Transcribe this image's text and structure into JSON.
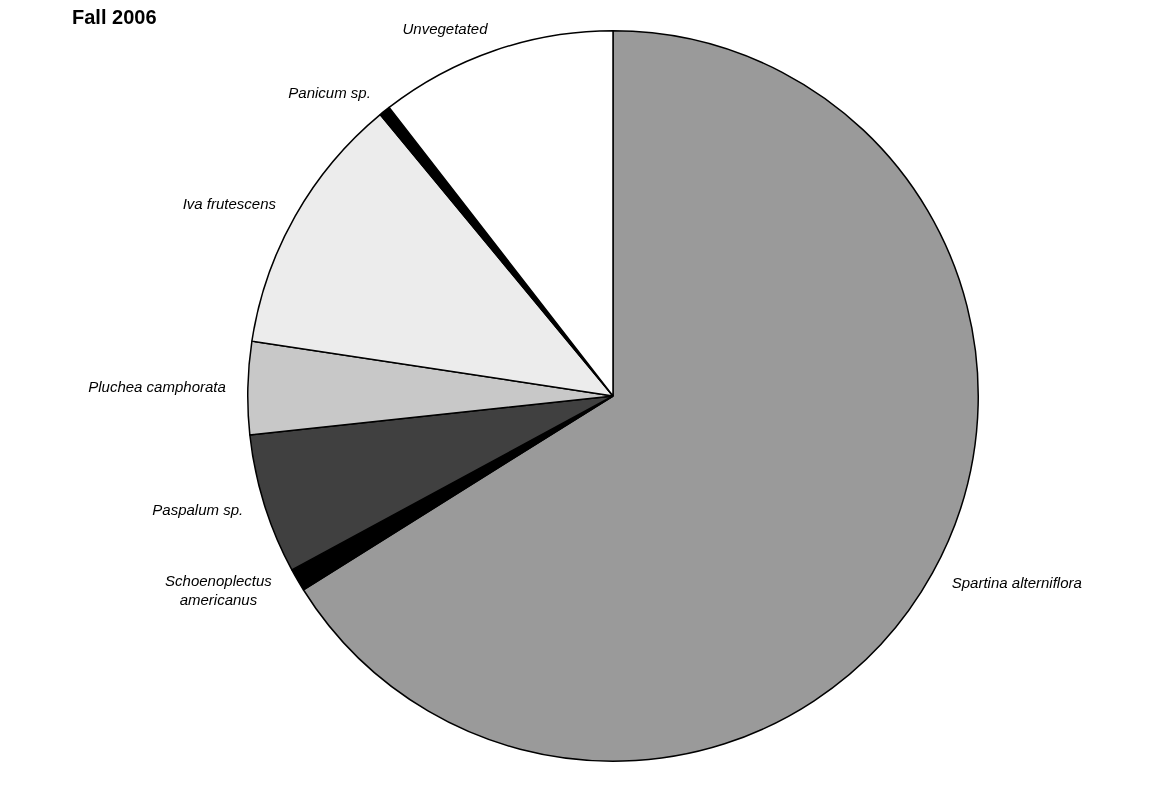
{
  "chart_data": {
    "type": "pie",
    "title": "Fall 2006",
    "categories": [
      "Spartina alterniflora",
      "Schoenoplectus americanus",
      "Paspalum sp.",
      "Pluchea camphorata",
      "Iva frutescens",
      "Panicum sp.",
      "Unvegetated"
    ],
    "values": [
      66.1,
      1.0,
      6.2,
      4.1,
      11.6,
      0.5,
      10.5
    ],
    "colors": [
      "#9a9a9a",
      "#000000",
      "#404040",
      "#c8c8c8",
      "#ececec",
      "#000000",
      "#ffffff"
    ],
    "legend": false
  }
}
